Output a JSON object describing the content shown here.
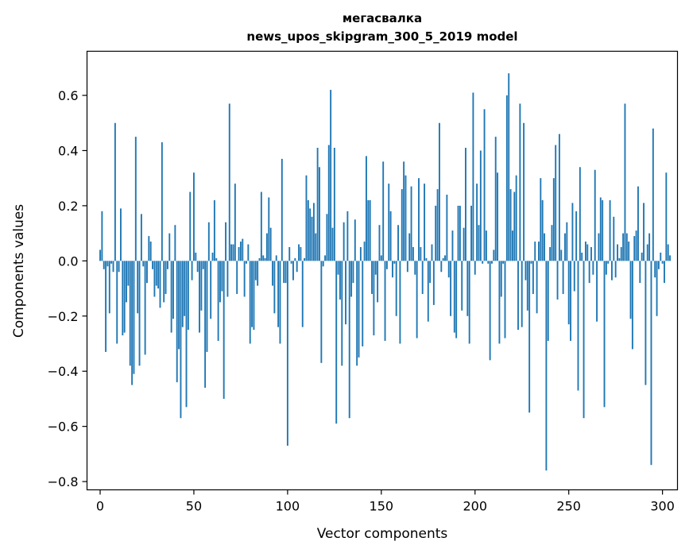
{
  "chart_data": {
    "type": "bar",
    "title": "мегасвалка",
    "subtitle": "news_upos_skipgram_300_5_2019 model",
    "xlabel": "Vector components",
    "ylabel": "Components values",
    "xlim": [
      -7,
      308
    ],
    "ylim": [
      -0.83,
      0.76
    ],
    "xticks": [
      0,
      50,
      100,
      150,
      200,
      250,
      300
    ],
    "xtick_labels": [
      "0",
      "50",
      "100",
      "150",
      "200",
      "250",
      "300"
    ],
    "yticks": [
      -0.8,
      -0.6,
      -0.4,
      -0.2,
      0.0,
      0.2,
      0.4,
      0.6
    ],
    "ytick_labels": [
      "−0.8",
      "−0.6",
      "−0.4",
      "−0.2",
      "0.0",
      "0.2",
      "0.4",
      "0.6"
    ],
    "grid": false,
    "bar_color": "#1f77b4",
    "series": [
      {
        "values": [
          0.04,
          0.18,
          -0.03,
          -0.33,
          -0.02,
          -0.19,
          -0.01,
          -0.04,
          0.5,
          -0.3,
          -0.04,
          0.19,
          -0.27,
          -0.26,
          -0.15,
          -0.09,
          -0.38,
          -0.45,
          -0.41,
          0.45,
          -0.19,
          -0.38,
          0.17,
          -0.02,
          -0.34,
          -0.08,
          0.09,
          0.07,
          -0.03,
          -0.13,
          -0.09,
          -0.1,
          -0.17,
          0.43,
          -0.15,
          -0.12,
          -0.03,
          0.1,
          -0.26,
          -0.21,
          0.13,
          -0.44,
          -0.32,
          -0.57,
          -0.24,
          -0.2,
          -0.53,
          -0.25,
          0.25,
          -0.07,
          0.32,
          0.03,
          -0.04,
          -0.26,
          -0.18,
          -0.03,
          -0.46,
          -0.33,
          0.14,
          -0.21,
          0.03,
          0.22,
          0.01,
          -0.29,
          -0.15,
          -0.11,
          -0.5,
          0.14,
          -0.13,
          0.57,
          0.06,
          0.06,
          0.28,
          -0.12,
          0.05,
          0.07,
          0.08,
          -0.13,
          -0.01,
          0.06,
          -0.3,
          -0.24,
          -0.25,
          -0.07,
          -0.09,
          0.01,
          0.25,
          0.02,
          0.01,
          0.1,
          0.23,
          0.12,
          -0.09,
          -0.19,
          0.02,
          -0.24,
          -0.3,
          0.37,
          -0.08,
          -0.08,
          -0.67,
          0.05,
          -0.01,
          -0.07,
          0.01,
          -0.04,
          0.06,
          0.05,
          -0.24,
          0.01,
          0.31,
          0.22,
          0.19,
          0.16,
          0.21,
          0.1,
          0.41,
          0.34,
          -0.37,
          -0.02,
          0.02,
          0.17,
          0.42,
          0.62,
          0.12,
          0.41,
          -0.59,
          -0.05,
          -0.14,
          -0.38,
          0.14,
          -0.23,
          0.18,
          -0.57,
          -0.13,
          -0.08,
          0.15,
          -0.38,
          -0.35,
          0.05,
          -0.31,
          0.07,
          0.38,
          0.22,
          0.22,
          -0.12,
          -0.27,
          -0.05,
          -0.15,
          0.13,
          0.02,
          0.36,
          -0.29,
          -0.03,
          0.28,
          0.18,
          -0.06,
          -0.01,
          -0.2,
          0.13,
          -0.3,
          0.26,
          0.36,
          0.31,
          -0.04,
          0.1,
          0.27,
          0.05,
          -0.05,
          -0.28,
          0.3,
          0.05,
          -0.12,
          0.28,
          0.01,
          -0.22,
          -0.08,
          0.06,
          -0.16,
          0.2,
          0.26,
          0.5,
          -0.04,
          0.01,
          0.02,
          0.24,
          -0.06,
          -0.2,
          0.11,
          -0.26,
          -0.28,
          0.2,
          0.2,
          -0.18,
          0.12,
          0.41,
          -0.2,
          -0.3,
          0.2,
          0.61,
          -0.05,
          0.28,
          0.13,
          0.4,
          -0.01,
          0.55,
          0.11,
          -0.01,
          -0.36,
          -0.01,
          0.04,
          0.45,
          0.32,
          -0.3,
          -0.13,
          -0.01,
          -0.28,
          0.6,
          0.68,
          0.26,
          0.11,
          0.25,
          0.31,
          -0.25,
          0.57,
          -0.24,
          0.5,
          -0.07,
          -0.18,
          -0.55,
          -0.01,
          -0.12,
          0.07,
          -0.19,
          0.07,
          0.3,
          0.22,
          0.1,
          -0.76,
          -0.29,
          0.05,
          0.13,
          0.3,
          0.42,
          -0.14,
          0.46,
          0.04,
          -0.12,
          0.1,
          0.14,
          -0.23,
          -0.29,
          0.21,
          -0.11,
          0.18,
          -0.47,
          0.34,
          0.03,
          -0.57,
          0.07,
          0.06,
          -0.08,
          0.05,
          -0.05,
          0.33,
          -0.22,
          0.1,
          0.23,
          0.22,
          -0.53,
          -0.05,
          -0.01,
          0.22,
          -0.07,
          0.16,
          -0.06,
          0.06,
          0.01,
          0.05,
          0.1,
          0.57,
          0.1,
          0.07,
          -0.21,
          -0.32,
          0.09,
          0.11,
          0.27,
          -0.08,
          0.03,
          0.21,
          -0.45,
          0.06,
          0.1,
          -0.74,
          0.48,
          -0.06,
          -0.2,
          -0.03,
          0.03,
          -0.01,
          -0.08,
          0.32,
          0.06,
          0.02
        ]
      }
    ]
  }
}
